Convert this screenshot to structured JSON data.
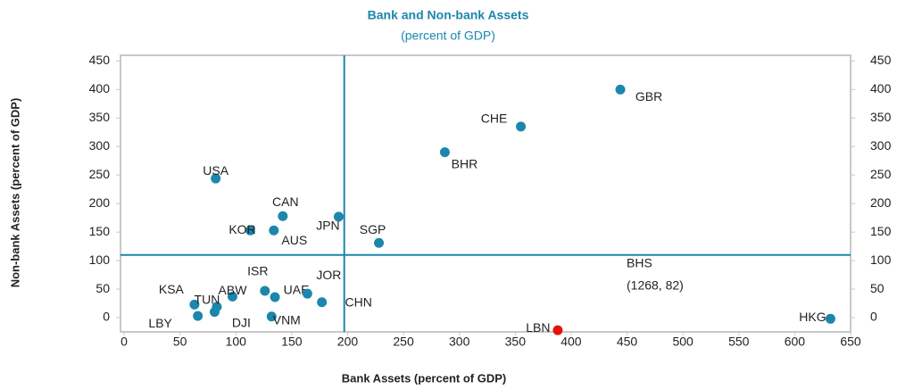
{
  "chart_data": {
    "type": "scatter",
    "title": "Bank and Non-bank Assets",
    "subtitle": "(percent of GDP)",
    "x_label": "Bank Assets  (percent of GDP)",
    "y_label": "Non-bank Assets (percent of GDP)",
    "point_labels": [
      "GBR",
      "CHE",
      "BHR",
      "USA",
      "CAN",
      "JPN",
      "KOR",
      "AUS",
      "SGP",
      "ISR",
      "UAE",
      "JOR",
      "CHN",
      "ABW",
      "KSA",
      "TUN",
      "LBY",
      "DJI",
      "VNM",
      "LBN",
      "HKG"
    ],
    "x": [
      444,
      355,
      287,
      82,
      142,
      192,
      113,
      134,
      228,
      126,
      135,
      164,
      177,
      97,
      63,
      83,
      66,
      81,
      132,
      388,
      632
    ],
    "values": [
      400,
      335,
      290,
      244,
      178,
      177,
      153,
      153,
      131,
      47,
      36,
      42,
      27,
      37,
      23,
      19,
      3,
      10,
      2,
      -22,
      -2
    ],
    "colors": [
      "#1c86ad",
      "#1c86ad",
      "#1c86ad",
      "#1c86ad",
      "#1c86ad",
      "#1c86ad",
      "#1c86ad",
      "#1c86ad",
      "#1c86ad",
      "#1c86ad",
      "#1c86ad",
      "#1c86ad",
      "#1c86ad",
      "#1c86ad",
      "#1c86ad",
      "#1c86ad",
      "#1c86ad",
      "#1c86ad",
      "#1c86ad",
      "#e3120b",
      "#1c86ad"
    ],
    "reference_lines": {
      "x": 197,
      "y": 110,
      "color": "#1c86ad"
    },
    "annotations": [
      "BHS",
      "(1268, 82)"
    ],
    "xlim": [
      0,
      650
    ],
    "xticks": [
      0,
      50,
      100,
      150,
      200,
      250,
      300,
      350,
      400,
      450,
      500,
      550,
      600,
      650
    ],
    "ylim": [
      -25,
      460
    ],
    "yticks": [
      0,
      50,
      100,
      150,
      200,
      250,
      300,
      350,
      400,
      450
    ]
  }
}
